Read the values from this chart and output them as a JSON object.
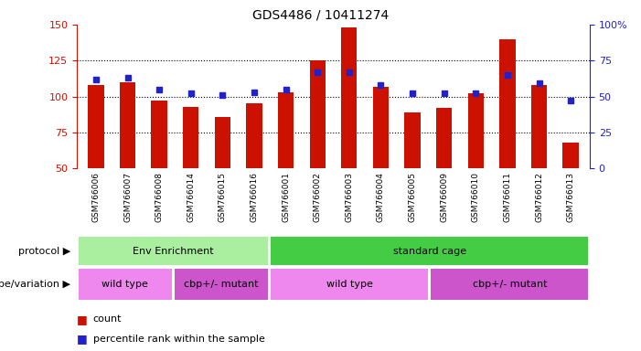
{
  "title": "GDS4486 / 10411274",
  "samples": [
    "GSM766006",
    "GSM766007",
    "GSM766008",
    "GSM766014",
    "GSM766015",
    "GSM766016",
    "GSM766001",
    "GSM766002",
    "GSM766003",
    "GSM766004",
    "GSM766005",
    "GSM766009",
    "GSM766010",
    "GSM766011",
    "GSM766012",
    "GSM766013"
  ],
  "counts": [
    108,
    110,
    97,
    93,
    86,
    95,
    103,
    125,
    148,
    107,
    89,
    92,
    102,
    140,
    108,
    68
  ],
  "percentiles": [
    62,
    63,
    55,
    52,
    51,
    53,
    55,
    67,
    67,
    58,
    52,
    52,
    52,
    65,
    59,
    47
  ],
  "ylim_left": [
    50,
    150
  ],
  "ylim_right": [
    0,
    100
  ],
  "bar_color": "#cc1100",
  "marker_color": "#2222cc",
  "protocol_groups": [
    {
      "label": "Env Enrichment",
      "start": 0,
      "end": 6,
      "color": "#aaeea a"
    },
    {
      "label": "standard cage",
      "start": 6,
      "end": 16,
      "color": "#44cc44"
    }
  ],
  "genotype_groups": [
    {
      "label": "wild type",
      "start": 0,
      "end": 3,
      "color": "#ee88ee"
    },
    {
      "label": "cbp+/- mutant",
      "start": 3,
      "end": 6,
      "color": "#cc55cc"
    },
    {
      "label": "wild type",
      "start": 6,
      "end": 11,
      "color": "#ee88ee"
    },
    {
      "label": "cbp+/- mutant",
      "start": 11,
      "end": 16,
      "color": "#cc55cc"
    }
  ],
  "bar_width": 0.5,
  "grid_vals": [
    75,
    100,
    125
  ],
  "left_yticks": [
    50,
    75,
    100,
    125,
    150
  ],
  "right_yticks": [
    0,
    25,
    50,
    75,
    100
  ],
  "xticklabel_bg": "#cccccc",
  "proto_label": "protocol",
  "geno_label": "genotype/variation"
}
